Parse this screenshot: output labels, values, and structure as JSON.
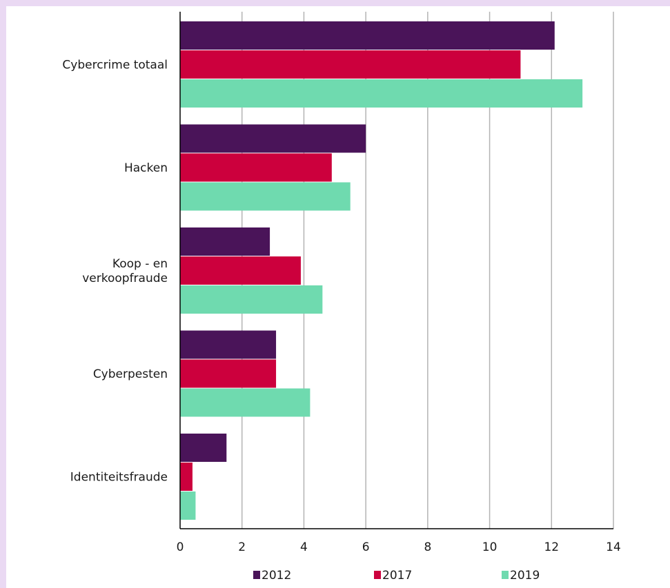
{
  "chart_data": {
    "type": "bar",
    "orientation": "horizontal",
    "categories": [
      [
        "Cybercrime totaal"
      ],
      [
        "Hacken"
      ],
      [
        "Koop - en",
        "verkoopfraude"
      ],
      [
        "Cyberpesten"
      ],
      [
        "Identiteitsfraude"
      ]
    ],
    "series": [
      {
        "name": "2012",
        "color": "#4a1459",
        "values": [
          12.1,
          6.0,
          2.9,
          3.1,
          1.5
        ]
      },
      {
        "name": "2017",
        "color": "#cc003d",
        "values": [
          11.0,
          4.9,
          3.9,
          3.1,
          0.4
        ]
      },
      {
        "name": "2019",
        "color": "#6fdaaf",
        "values": [
          13.0,
          5.5,
          4.6,
          4.2,
          0.5
        ]
      }
    ],
    "xlim": [
      0,
      14
    ],
    "xticks": [
      "0",
      "2",
      "4",
      "6",
      "8",
      "10",
      "12",
      "14"
    ],
    "grid": "vertical",
    "legend": "bottom"
  }
}
